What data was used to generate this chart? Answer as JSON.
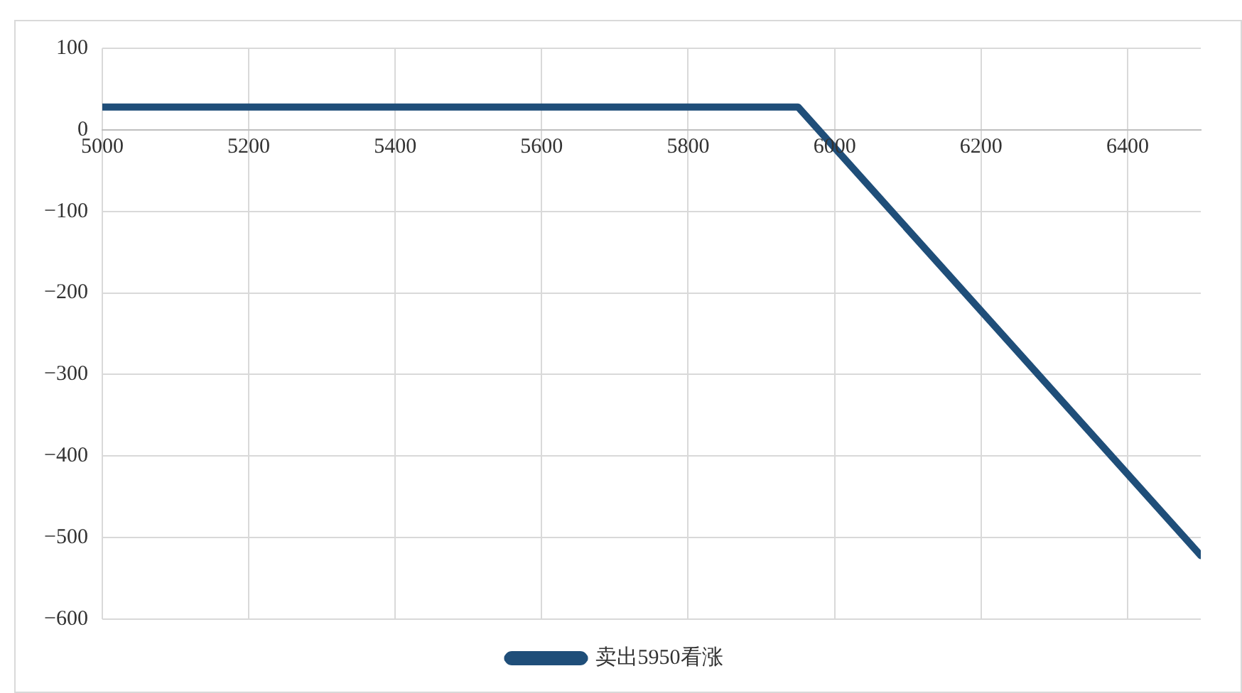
{
  "chart_data": {
    "type": "line",
    "x": [
      5000,
      5950,
      6500
    ],
    "series": [
      {
        "name": "卖出5950看涨",
        "color": "#1f4e79",
        "values": [
          28,
          28,
          -522
        ]
      }
    ],
    "xlim": [
      5000,
      6500
    ],
    "xticks": [
      5000,
      5200,
      5400,
      5600,
      5800,
      6000,
      6200,
      6400
    ],
    "ylim": [
      -600,
      100
    ],
    "yticks": [
      {
        "value": -600,
        "label": "−600"
      },
      {
        "value": -500,
        "label": "−500"
      },
      {
        "value": -400,
        "label": "−400"
      },
      {
        "value": -300,
        "label": "−300"
      },
      {
        "value": -200,
        "label": "−200"
      },
      {
        "value": -100,
        "label": "−100"
      },
      0,
      100
    ],
    "grid": true,
    "legend": "bottom",
    "marker": "none",
    "line_style": "solid"
  }
}
